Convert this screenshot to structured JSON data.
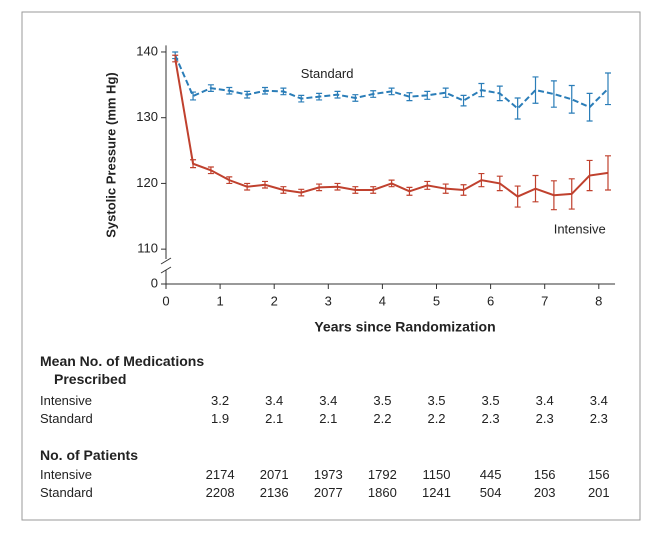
{
  "chart_data": {
    "type": "line",
    "xlabel": "Years since Randomization",
    "ylabel": "Systolic Pressure (mm Hg)",
    "x": [
      0.17,
      0.5,
      0.83,
      1.17,
      1.5,
      1.83,
      2.17,
      2.5,
      2.83,
      3.17,
      3.5,
      3.83,
      4.17,
      4.5,
      4.83,
      5.17,
      5.5,
      5.83,
      6.17,
      6.5,
      6.83,
      7.17,
      7.5,
      7.83,
      8.17
    ],
    "series": [
      {
        "name": "Standard",
        "color": "#2a7db8",
        "dashed": true,
        "values": [
          139.5,
          133.3,
          134.5,
          134.1,
          133.5,
          134.1,
          134.0,
          132.9,
          133.2,
          133.5,
          133.0,
          133.6,
          134.0,
          133.2,
          133.4,
          133.8,
          132.6,
          134.2,
          133.7,
          131.4,
          134.2,
          133.6,
          132.8,
          131.6,
          134.4
        ],
        "errors": [
          0.5,
          0.6,
          0.5,
          0.5,
          0.5,
          0.5,
          0.5,
          0.5,
          0.5,
          0.5,
          0.5,
          0.5,
          0.5,
          0.6,
          0.6,
          0.7,
          0.8,
          1.0,
          1.1,
          1.6,
          2.0,
          2.0,
          2.1,
          2.1,
          2.4
        ]
      },
      {
        "name": "Intensive",
        "color": "#c0412e",
        "dashed": false,
        "values": [
          139.0,
          123.0,
          122.0,
          120.5,
          119.5,
          119.8,
          119.0,
          118.6,
          119.4,
          119.5,
          119.0,
          119.0,
          120.0,
          118.8,
          119.7,
          119.2,
          119.0,
          120.5,
          120.0,
          118.0,
          119.2,
          118.2,
          118.4,
          121.2,
          121.6
        ],
        "errors": [
          0.5,
          0.6,
          0.5,
          0.5,
          0.5,
          0.5,
          0.5,
          0.5,
          0.5,
          0.5,
          0.5,
          0.5,
          0.5,
          0.6,
          0.6,
          0.7,
          0.8,
          1.0,
          1.1,
          1.6,
          2.0,
          2.2,
          2.3,
          2.3,
          2.6
        ]
      }
    ],
    "xlim": [
      0,
      8.3
    ],
    "xticks": [
      0,
      1,
      2,
      3,
      4,
      5,
      6,
      7,
      8
    ],
    "ylim": [
      108.5,
      141
    ],
    "yticks": [
      0,
      110,
      120,
      130,
      140
    ],
    "y_axis_break": true,
    "grid": false
  },
  "tables": [
    {
      "title": "Mean No. of Medications Prescribed",
      "rows": [
        {
          "label": "Intensive",
          "values": [
            3.2,
            3.4,
            3.4,
            3.5,
            3.5,
            3.5,
            3.4,
            3.4
          ]
        },
        {
          "label": "Standard",
          "values": [
            1.9,
            2.1,
            2.1,
            2.2,
            2.2,
            2.3,
            2.3,
            2.3
          ]
        }
      ]
    },
    {
      "title": "No. of Patients",
      "rows": [
        {
          "label": "Intensive",
          "values": [
            2174,
            2071,
            1973,
            1792,
            1150,
            445,
            156,
            156
          ]
        },
        {
          "label": "Standard",
          "values": [
            2208,
            2136,
            2077,
            1860,
            1241,
            504,
            203,
            201
          ]
        }
      ]
    }
  ]
}
